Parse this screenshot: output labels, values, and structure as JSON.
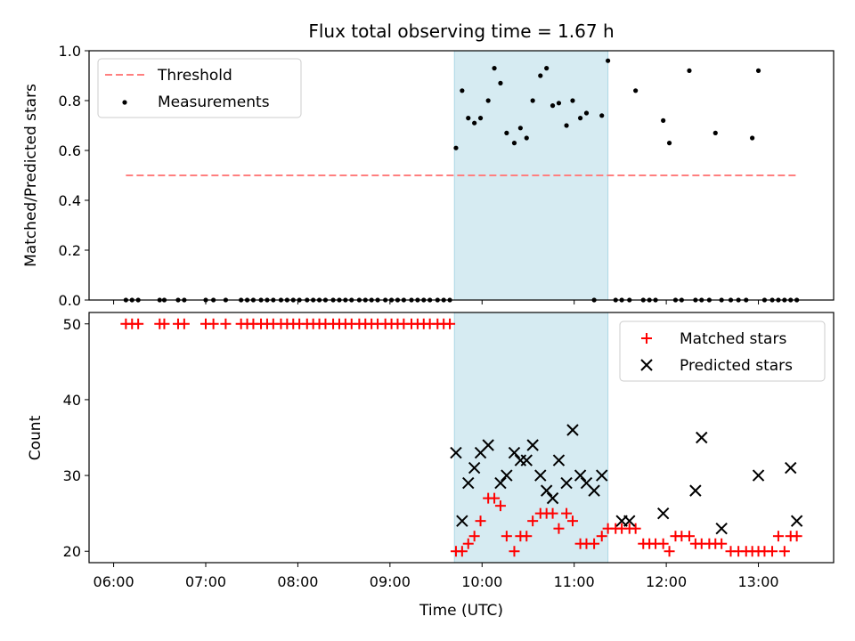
{
  "chart_data": [
    {
      "type": "scatter",
      "title": "Flux total observing time = 1.67 h",
      "ylabel": "Matched/Predicted stars",
      "xlabel": "",
      "ylim": [
        0,
        1
      ],
      "yticks": [
        0.0,
        0.2,
        0.4,
        0.6,
        0.8,
        1.0
      ],
      "ytick_labels": [
        "0.0",
        "0.2",
        "0.4",
        "0.6",
        "0.8",
        "1.0"
      ],
      "shaded_interval": [
        "09:42",
        "11:22"
      ],
      "shade_color": "#add8e6",
      "legend_position": "upper-left",
      "threshold": {
        "name": "Threshold",
        "value": 0.5,
        "x_range": [
          "06:08",
          "13:25"
        ],
        "color": "#ff7f7f"
      },
      "measurements": {
        "name": "Measurements",
        "color": "#000000",
        "x": [
          "06:08",
          "06:12",
          "06:16",
          "06:30",
          "06:33",
          "06:42",
          "06:46",
          "07:00",
          "07:05",
          "07:13",
          "07:23",
          "07:27",
          "07:31",
          "07:36",
          "07:40",
          "07:44",
          "07:49",
          "07:53",
          "07:57",
          "08:01",
          "08:06",
          "08:10",
          "08:14",
          "08:18",
          "08:23",
          "08:27",
          "08:31",
          "08:35",
          "08:40",
          "08:44",
          "08:48",
          "08:52",
          "08:57",
          "09:01",
          "09:05",
          "09:09",
          "09:14",
          "09:18",
          "09:22",
          "09:26",
          "09:31",
          "09:35",
          "09:39",
          "09:43",
          "09:47",
          "09:51",
          "09:55",
          "09:59",
          "10:04",
          "10:08",
          "10:12",
          "10:16",
          "10:21",
          "10:25",
          "10:29",
          "10:33",
          "10:38",
          "10:42",
          "10:46",
          "10:50",
          "10:55",
          "10:59",
          "11:04",
          "11:08",
          "11:13",
          "11:18",
          "11:22",
          "11:27",
          "11:31",
          "11:36",
          "11:40",
          "11:45",
          "11:49",
          "11:53",
          "11:58",
          "12:02",
          "12:06",
          "12:10",
          "12:15",
          "12:19",
          "12:23",
          "12:28",
          "12:32",
          "12:36",
          "12:42",
          "12:47",
          "12:52",
          "12:56",
          "13:00",
          "13:04",
          "13:09",
          "13:13",
          "13:17",
          "13:21",
          "13:25"
        ],
        "y": [
          0,
          0,
          0,
          0,
          0,
          0,
          0,
          0,
          0,
          0,
          0,
          0,
          0,
          0,
          0,
          0,
          0,
          0,
          0,
          0,
          0,
          0,
          0,
          0,
          0,
          0,
          0,
          0,
          0,
          0,
          0,
          0,
          0,
          0,
          0,
          0,
          0,
          0,
          0,
          0,
          0,
          0,
          0,
          0.61,
          0.84,
          0.73,
          0.71,
          0.73,
          0.8,
          0.93,
          0.87,
          0.67,
          0.63,
          0.69,
          0.65,
          0.8,
          0.9,
          0.93,
          0.78,
          0.79,
          0.7,
          0.8,
          0.73,
          0.75,
          0,
          0.74,
          0.96,
          0,
          0,
          0,
          0.84,
          0,
          0,
          0,
          0.72,
          0.63,
          0,
          0,
          0.92,
          0,
          0,
          0,
          0.67,
          0,
          0,
          0,
          0,
          0.65,
          0.92,
          0,
          0,
          0,
          0,
          0,
          0
        ]
      }
    },
    {
      "type": "scatter",
      "xlabel": "Time (UTC)",
      "ylabel": "Count",
      "ylim": [
        18.5,
        51.5
      ],
      "yticks": [
        20,
        30,
        40,
        50
      ],
      "ytick_labels": [
        "20",
        "30",
        "40",
        "50"
      ],
      "xlim": [
        "05:44",
        "13:49"
      ],
      "xticks": [
        "06:00",
        "07:00",
        "08:00",
        "09:00",
        "10:00",
        "11:00",
        "12:00",
        "13:00"
      ],
      "shaded_interval": [
        "09:42",
        "11:22"
      ],
      "legend_position": "upper-right",
      "series": [
        {
          "name": "Matched stars",
          "marker": "plus",
          "color": "#ff0000",
          "x": [
            "06:08",
            "06:12",
            "06:16",
            "06:30",
            "06:33",
            "06:42",
            "06:46",
            "07:00",
            "07:05",
            "07:13",
            "07:23",
            "07:27",
            "07:31",
            "07:36",
            "07:40",
            "07:44",
            "07:49",
            "07:53",
            "07:57",
            "08:01",
            "08:06",
            "08:10",
            "08:14",
            "08:18",
            "08:23",
            "08:27",
            "08:31",
            "08:35",
            "08:40",
            "08:44",
            "08:48",
            "08:52",
            "08:57",
            "09:01",
            "09:05",
            "09:09",
            "09:14",
            "09:18",
            "09:22",
            "09:26",
            "09:31",
            "09:35",
            "09:39",
            "09:43",
            "09:47",
            "09:51",
            "09:55",
            "09:59",
            "10:04",
            "10:08",
            "10:12",
            "10:16",
            "10:21",
            "10:25",
            "10:29",
            "10:33",
            "10:38",
            "10:42",
            "10:46",
            "10:50",
            "10:55",
            "10:59",
            "11:04",
            "11:08",
            "11:13",
            "11:18",
            "11:22",
            "11:27",
            "11:31",
            "11:36",
            "11:40",
            "11:45",
            "11:49",
            "11:53",
            "11:58",
            "12:02",
            "12:06",
            "12:10",
            "12:15",
            "12:19",
            "12:23",
            "12:28",
            "12:32",
            "12:36",
            "12:42",
            "12:47",
            "12:52",
            "12:56",
            "13:00",
            "13:04",
            "13:09",
            "13:13",
            "13:17",
            "13:21",
            "13:25"
          ],
          "y": [
            50,
            50,
            50,
            50,
            50,
            50,
            50,
            50,
            50,
            50,
            50,
            50,
            50,
            50,
            50,
            50,
            50,
            50,
            50,
            50,
            50,
            50,
            50,
            50,
            50,
            50,
            50,
            50,
            50,
            50,
            50,
            50,
            50,
            50,
            50,
            50,
            50,
            50,
            50,
            50,
            50,
            50,
            50,
            20,
            20,
            21,
            22,
            24,
            27,
            27,
            26,
            22,
            20,
            22,
            22,
            24,
            25,
            25,
            25,
            23,
            25,
            24,
            21,
            21,
            21,
            22,
            23,
            23,
            23,
            23,
            23,
            21,
            21,
            21,
            21,
            20,
            22,
            22,
            22,
            21,
            21,
            21,
            21,
            21,
            20,
            20,
            20,
            20,
            20,
            20,
            20,
            22,
            20,
            22,
            22
          ]
        },
        {
          "name": "Predicted stars",
          "marker": "x",
          "color": "#000000",
          "x": [
            "09:43",
            "09:47",
            "09:51",
            "09:55",
            "09:59",
            "10:04",
            "10:12",
            "10:16",
            "10:21",
            "10:25",
            "10:29",
            "10:33",
            "10:38",
            "10:42",
            "10:46",
            "10:50",
            "10:55",
            "10:59",
            "11:04",
            "11:08",
            "11:13",
            "11:18",
            "11:31",
            "11:36",
            "11:58",
            "12:19",
            "12:23",
            "12:36",
            "13:00",
            "13:21",
            "13:25"
          ],
          "y": [
            33,
            24,
            29,
            31,
            33,
            34,
            29,
            30,
            33,
            32,
            32,
            34,
            30,
            28,
            27,
            32,
            29,
            36,
            30,
            29,
            28,
            30,
            24,
            24,
            25,
            28,
            35,
            23,
            30,
            31,
            24
          ]
        }
      ]
    }
  ]
}
